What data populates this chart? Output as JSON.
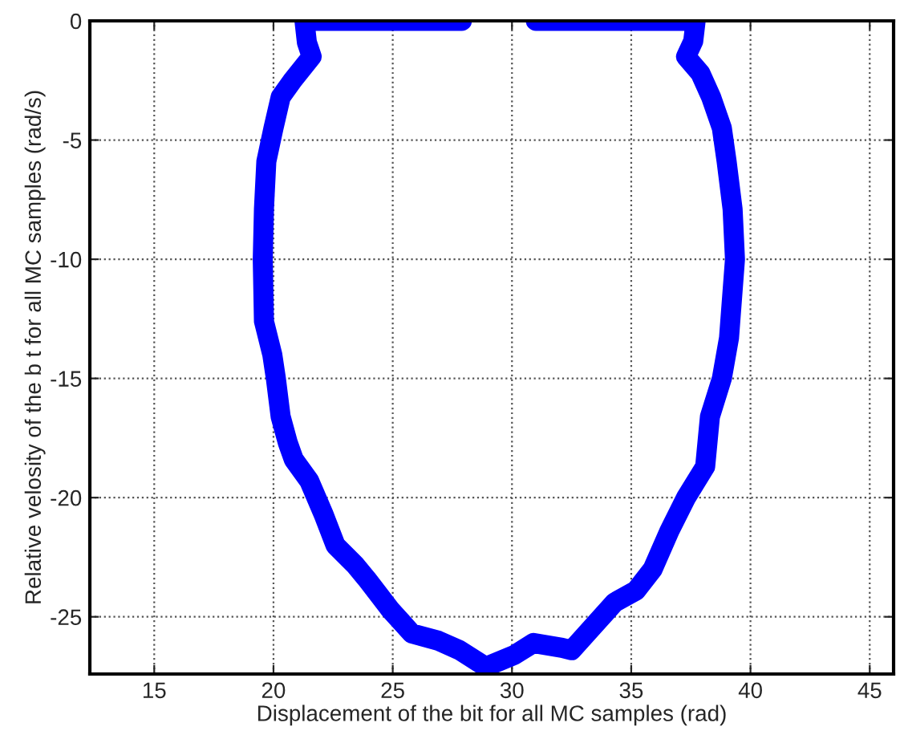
{
  "chart_data": {
    "type": "line",
    "xlabel": "Displacement of the bit for all MC samples (rad)",
    "ylabel": "Relative velosity of the b t for all MC samples (rad/s)",
    "series": [
      {
        "color": "#0000ff",
        "x": [
          27.9,
          25,
          23,
          21.3,
          21.4,
          21.6,
          20.8,
          20.3,
          20.0,
          19.7,
          19.6,
          19.55,
          19.6,
          19.95,
          20.1,
          20.3,
          20.6,
          20.85,
          21.5,
          22.1,
          22.6,
          23.4,
          23.9,
          24.9,
          25.8,
          26.9,
          27.8,
          28.9,
          30.1,
          30.9,
          32.1,
          32.5,
          33.4,
          34.3,
          35.2,
          35.9,
          36.6,
          37.3,
          38.1,
          38.3,
          38.8,
          39.1,
          39.35,
          39.25,
          39.0,
          38.8,
          38.35,
          37.9,
          37.3,
          37.6,
          37.7,
          35,
          33,
          31.0
        ],
        "values": [
          0,
          0,
          0,
          0,
          -0.9,
          -1.5,
          -2.5,
          -3.2,
          -4.5,
          -5.9,
          -7.9,
          -10,
          -12.6,
          -14,
          -15,
          -16.6,
          -17.7,
          -18.4,
          -19.3,
          -20.7,
          -22,
          -22.8,
          -23.4,
          -24.7,
          -25.7,
          -26.0,
          -26.4,
          -27.1,
          -26.6,
          -26.1,
          -26.3,
          -26.4,
          -25.4,
          -24.4,
          -23.9,
          -23.0,
          -21.4,
          -20.0,
          -18.7,
          -16.6,
          -15,
          -13.3,
          -10,
          -7.9,
          -5.9,
          -4.5,
          -3.2,
          -2.2,
          -1.5,
          -0.85,
          0,
          0,
          0,
          0
        ]
      }
    ],
    "xlim": [
      12.3,
      46
    ],
    "ylim": [
      -27.4,
      0
    ],
    "xticks": [
      15,
      20,
      25,
      30,
      35,
      40,
      45
    ],
    "yticks": [
      -25,
      -20,
      -15,
      -10,
      -5,
      0
    ],
    "grid": true,
    "line_style": "solid"
  }
}
